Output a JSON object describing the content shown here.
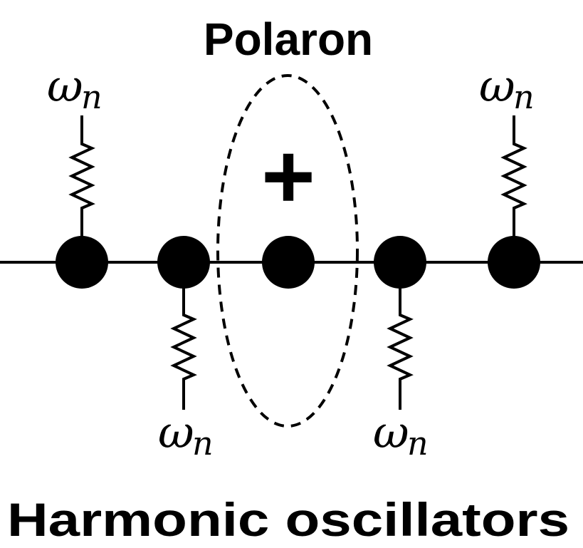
{
  "title": "Polaron",
  "charge_symbol": "+",
  "caption": "Harmonic oscillators",
  "oscillator_label": {
    "symbol": "ω",
    "subscript": "n"
  },
  "colors": {
    "ink": "#000000",
    "background": "#ffffff"
  }
}
